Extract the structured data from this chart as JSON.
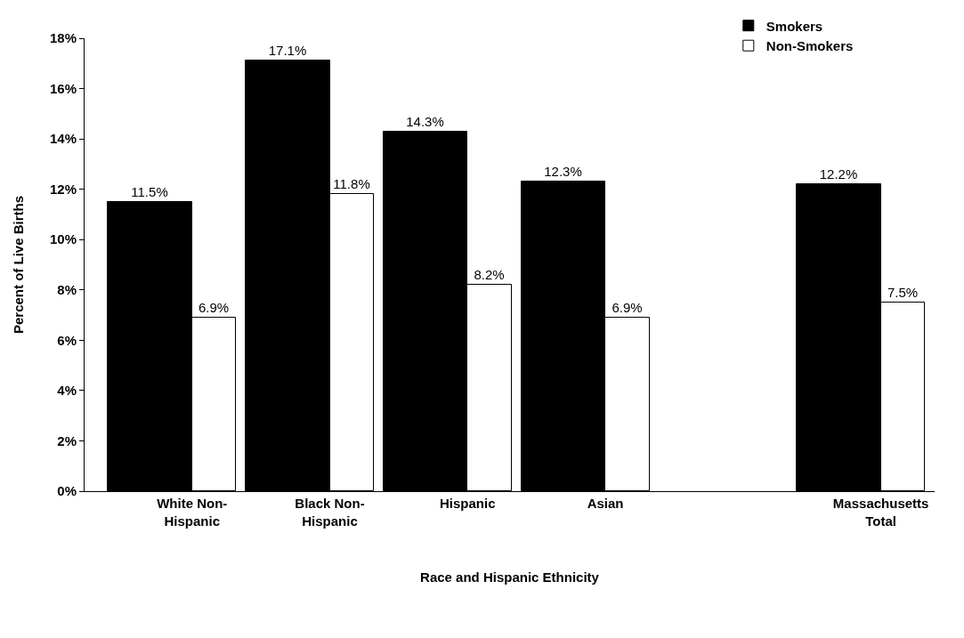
{
  "chart_data": {
    "type": "bar",
    "xlabel": "Race and Hispanic Ethnicity",
    "ylabel": "Percent of Live Births",
    "categories": [
      "White Non-\nHispanic",
      "Black Non-\nHispanic",
      "Hispanic",
      "Asian",
      null,
      "Massachusetts\nTotal"
    ],
    "series": [
      {
        "name": "Smokers",
        "color": "#000000",
        "values": [
          11.5,
          17.1,
          14.3,
          12.3,
          null,
          12.2
        ],
        "value_labels": [
          "11.5%",
          "17.1%",
          "14.3%",
          "12.3%",
          null,
          "12.2%"
        ]
      },
      {
        "name": "Non-Smokers",
        "color": "#ffffff",
        "values": [
          6.9,
          11.8,
          8.2,
          6.9,
          null,
          7.5
        ],
        "value_labels": [
          "6.9%",
          "11.8%",
          "8.2%",
          "6.9%",
          null,
          "7.5%"
        ]
      }
    ],
    "ylim": [
      0,
      18
    ],
    "yticks": [
      {
        "value": 0,
        "label": "0%"
      },
      {
        "value": 2,
        "label": "2%"
      },
      {
        "value": 4,
        "label": "4%"
      },
      {
        "value": 6,
        "label": "6%"
      },
      {
        "value": 8,
        "label": "8%"
      },
      {
        "value": 10,
        "label": "10%"
      },
      {
        "value": 12,
        "label": "12%"
      },
      {
        "value": 14,
        "label": "14%"
      },
      {
        "value": 16,
        "label": "16%"
      },
      {
        "value": 18,
        "label": "18%"
      }
    ],
    "legend": "top right"
  }
}
